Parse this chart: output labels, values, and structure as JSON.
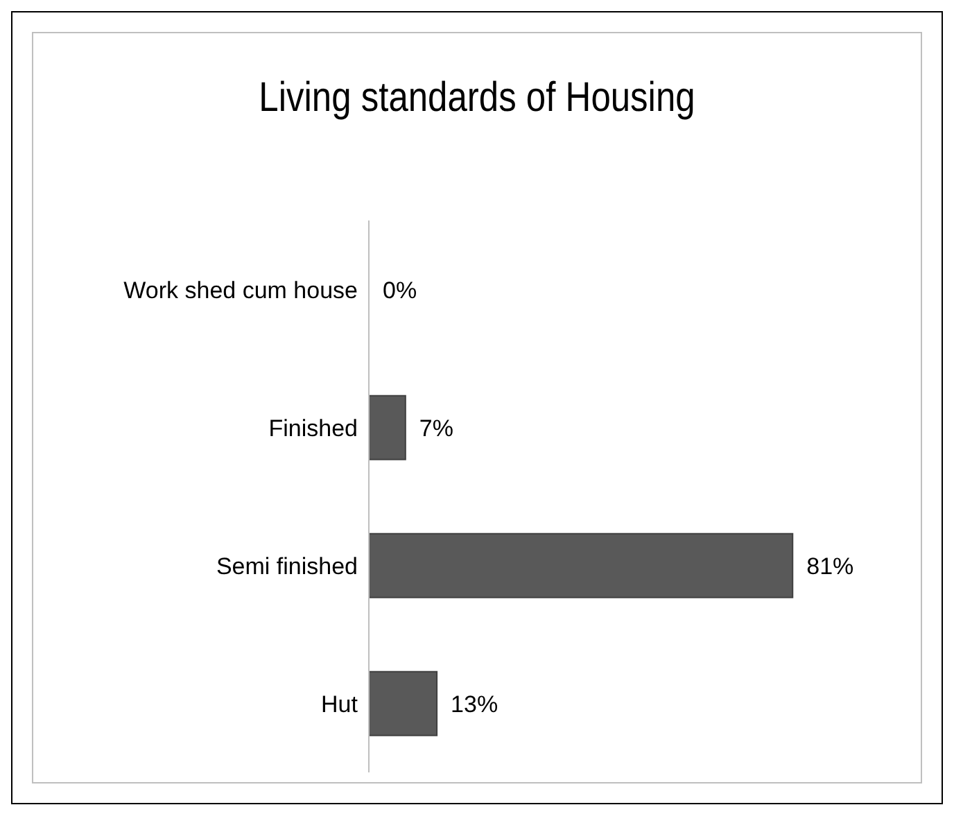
{
  "chart_data": {
    "type": "bar",
    "orientation": "horizontal",
    "title": "Living standards of Housing",
    "categories": [
      "Work shed cum house",
      "Finished",
      "Semi finished",
      "Hut"
    ],
    "values": [
      0,
      7,
      81,
      13
    ],
    "value_labels": [
      "0%",
      "7%",
      "81%",
      "13%"
    ],
    "color": "#595959",
    "grid": false,
    "legend": false
  }
}
